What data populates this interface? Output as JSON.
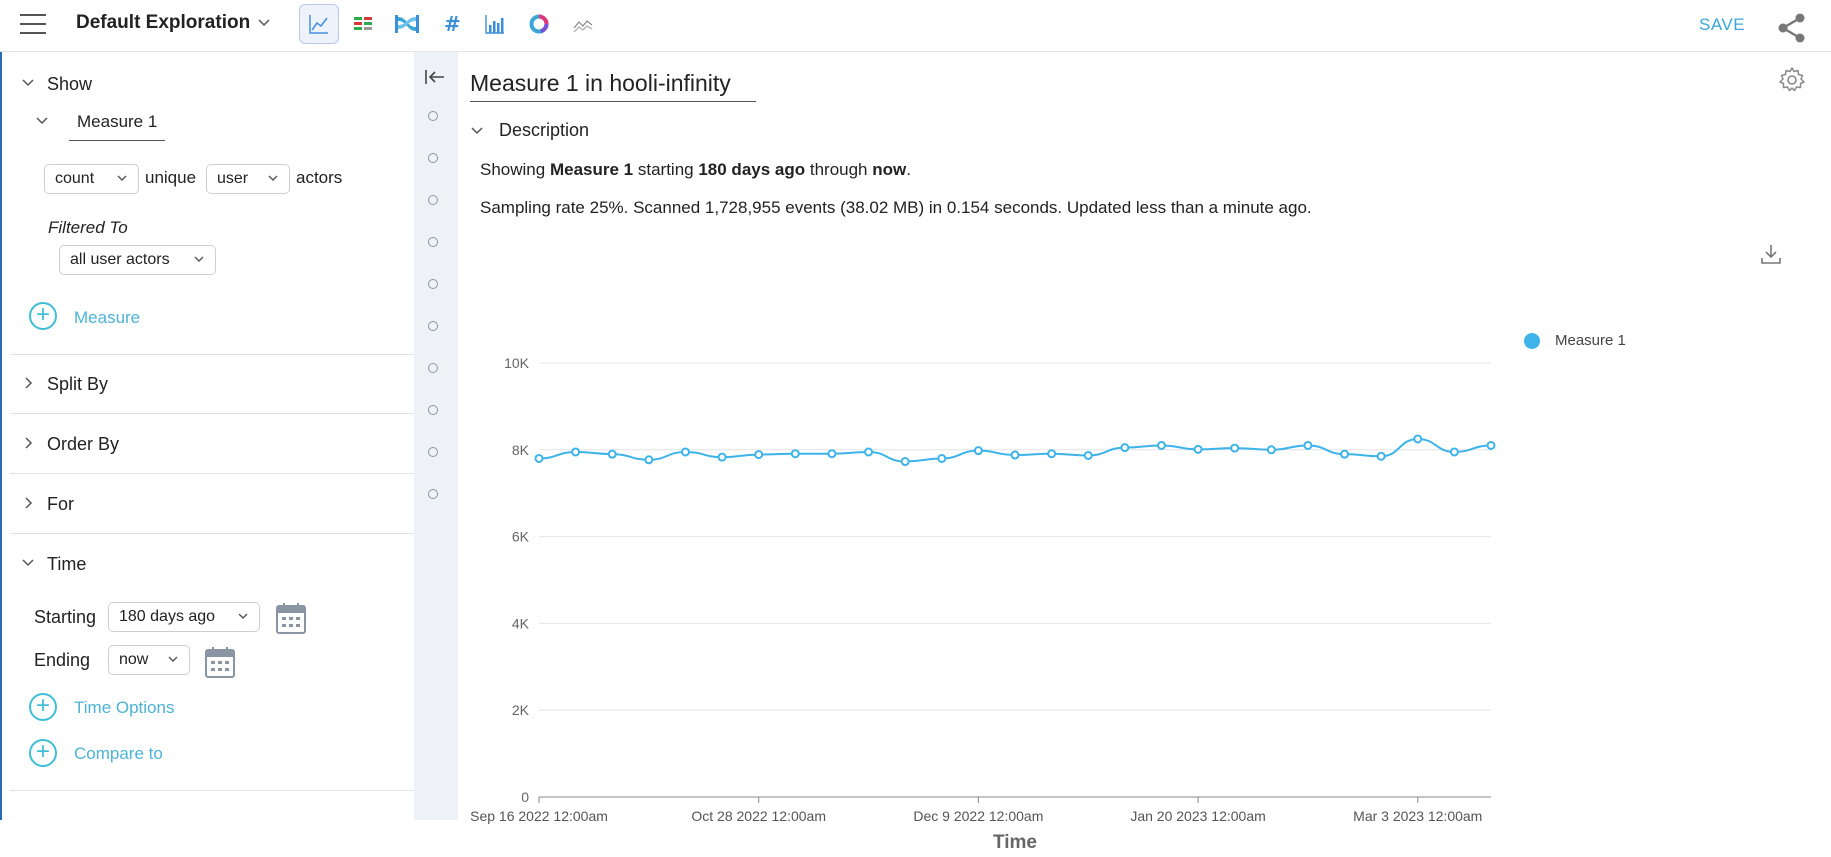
{
  "header": {
    "title": "Default Exploration",
    "save_label": "SAVE",
    "viz_icons": [
      "line-chart-icon",
      "stacked-table-icon",
      "sankey-icon",
      "number-icon",
      "bar-chart-icon",
      "donut-chart-icon",
      "sparkline-icon"
    ]
  },
  "show": {
    "heading": "Show",
    "measure_name": "Measure 1",
    "aggregation": "count",
    "unique_label": "unique",
    "actor_type": "user",
    "actors_label": "actors",
    "filtered_to_label": "Filtered To",
    "filter_value": "all user actors",
    "add_measure_label": "Measure"
  },
  "sections": {
    "split_by": "Split By",
    "order_by": "Order By",
    "for_label": "For"
  },
  "time": {
    "heading": "Time",
    "starting_label": "Starting",
    "starting_value": "180 days ago",
    "ending_label": "Ending",
    "ending_value": "now",
    "time_options_label": "Time Options",
    "compare_to_label": "Compare to"
  },
  "main": {
    "title": "Measure 1 in hooli-infinity",
    "description_heading": "Description",
    "desc_prefix": "Showing",
    "desc_measure": "Measure 1",
    "desc_starting": "starting",
    "desc_start_value": "180 days ago",
    "desc_through": "through",
    "desc_end_value": "now",
    "desc_period": ".",
    "sampling_text": "Sampling rate 25%. Scanned 1,728,955 events (38.02 MB) in 0.154 seconds. Updated less than a minute ago."
  },
  "colors": {
    "accent": "#3aa6d8",
    "series": "#3db3ea",
    "teal": "#3fbfd6"
  },
  "chart_data": {
    "type": "line",
    "xlabel": "Time",
    "ylabel": "",
    "ylim": [
      0,
      10000
    ],
    "yticks": [
      0,
      2000,
      4000,
      6000,
      8000,
      10000
    ],
    "ytick_labels": [
      "0",
      "2K",
      "4K",
      "6K",
      "8K",
      "10K"
    ],
    "x_tick_labels": [
      "Sep 16 2022 12:00am",
      "Oct 28 2022 12:00am",
      "Dec 9 2022 12:00am",
      "Jan 20 2023 12:00am",
      "Mar 3 2023 12:00am"
    ],
    "x_tick_index": [
      0,
      6,
      12,
      18,
      24
    ],
    "legend": {
      "position": "right",
      "entries": [
        "Measure 1"
      ]
    },
    "grid": true,
    "series": [
      {
        "name": "Measure 1",
        "values": [
          7800,
          7950,
          7900,
          7770,
          7950,
          7830,
          7890,
          7910,
          7910,
          7950,
          7730,
          7800,
          7980,
          7880,
          7910,
          7870,
          8050,
          8100,
          8010,
          8040,
          8000,
          8100,
          7900,
          7850,
          8250,
          7950,
          8100
        ]
      }
    ]
  }
}
